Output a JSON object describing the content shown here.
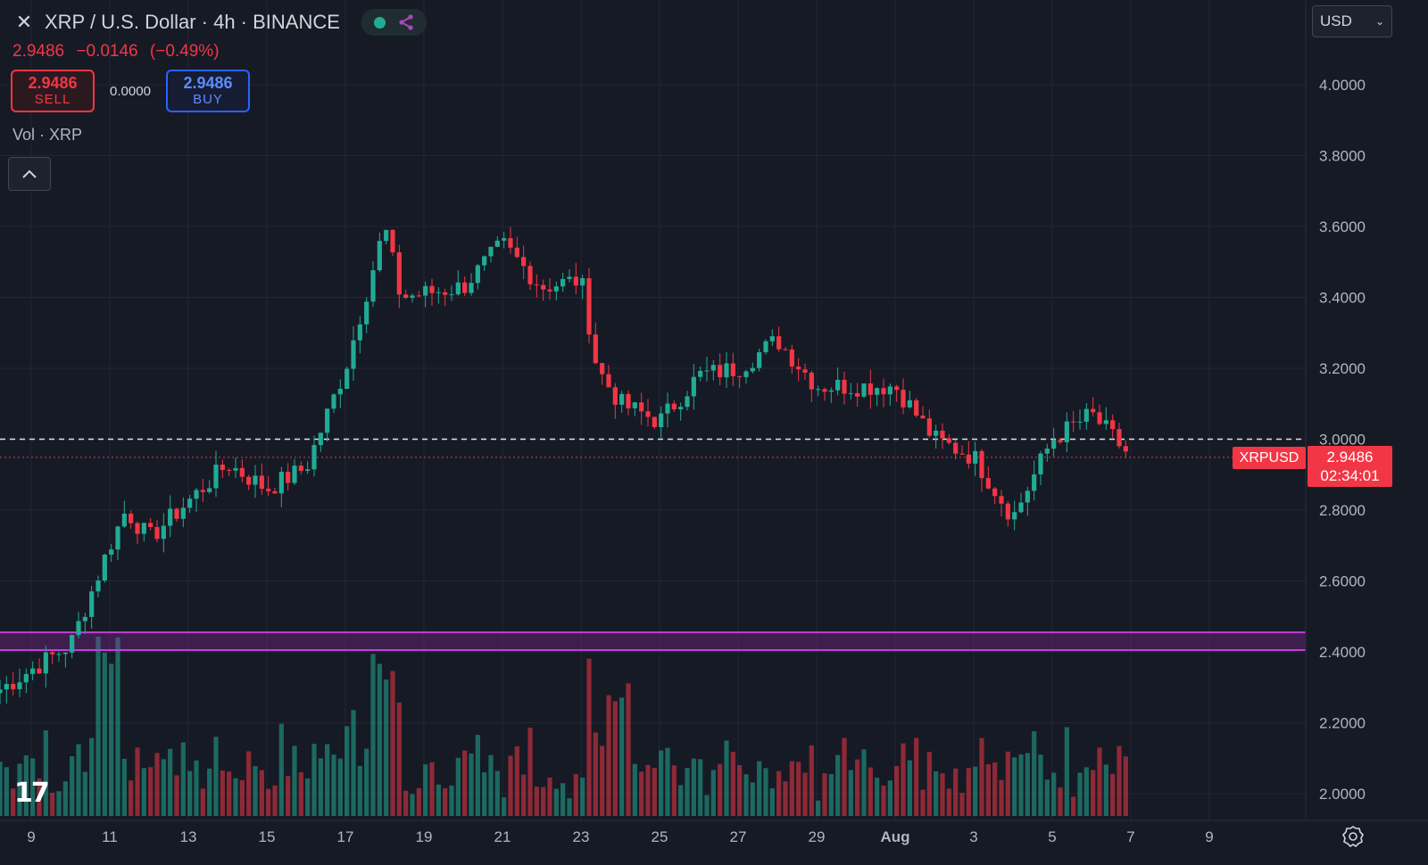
{
  "header": {
    "close_icon": "close-icon",
    "symbol_title": "XRP / U.S. Dollar · 4h · BINANCE",
    "status_icons": [
      "market-open-dot-icon",
      "share-icon"
    ]
  },
  "ohlc": {
    "last": "2.9486",
    "change": "−0.0146",
    "change_pct": "(−0.49%)"
  },
  "trade_panel": {
    "sell_price": "2.9486",
    "sell_label": "SELL",
    "spread": "0.0000",
    "buy_price": "2.9486",
    "buy_label": "BUY"
  },
  "volume_label": "Vol · XRP",
  "currency_selector": {
    "value": "USD"
  },
  "price_marker": {
    "symbol": "XRPUSD",
    "price": "2.9486",
    "countdown": "02:34:01"
  },
  "colors": {
    "up": "#22ab94",
    "down": "#f23645",
    "zone": "#9c27b0",
    "background": "#161a25"
  },
  "chart_data": {
    "type": "candlestick",
    "interval": "4h",
    "y_axis": {
      "ticks": [
        "4.0000",
        "3.8000",
        "3.6000",
        "3.4000",
        "3.2000",
        "3.0000",
        "2.8000",
        "2.6000",
        "2.4000",
        "2.2000",
        "2.0000"
      ],
      "ylim": [
        1.95,
        4.2
      ],
      "side": "right"
    },
    "x_axis": {
      "ticks": [
        "9",
        "11",
        "13",
        "15",
        "17",
        "19",
        "21",
        "23",
        "25",
        "27",
        "29",
        "Aug",
        "3",
        "5",
        "7",
        "9"
      ]
    },
    "key_points": [
      {
        "date": "Jul 8",
        "price": 2.28
      },
      {
        "date": "Jul 10",
        "price": 2.42
      },
      {
        "date": "Jul 11",
        "price": 2.7
      },
      {
        "date": "Jul 11",
        "price": 2.8
      },
      {
        "date": "Jul 12",
        "price": 2.72
      },
      {
        "date": "Jul 14",
        "price": 2.93
      },
      {
        "date": "Jul 15",
        "price": 2.86
      },
      {
        "date": "Jul 16",
        "price": 2.92
      },
      {
        "date": "Jul 17",
        "price": 3.2
      },
      {
        "date": "Jul 18",
        "price": 3.6
      },
      {
        "date": "Jul 18",
        "price": 3.4
      },
      {
        "date": "Jul 20",
        "price": 3.43
      },
      {
        "date": "Jul 21",
        "price": 3.55
      },
      {
        "date": "Jul 22",
        "price": 3.43
      },
      {
        "date": "Jul 23",
        "price": 3.45
      },
      {
        "date": "Jul 23",
        "price": 3.2
      },
      {
        "date": "Jul 24",
        "price": 3.1
      },
      {
        "date": "Jul 25",
        "price": 3.05
      },
      {
        "date": "Jul 26",
        "price": 3.18
      },
      {
        "date": "Jul 27",
        "price": 3.2
      },
      {
        "date": "Jul 28",
        "price": 3.28
      },
      {
        "date": "Jul 29",
        "price": 3.15
      },
      {
        "date": "Jul 31",
        "price": 3.15
      },
      {
        "date": "Aug 1",
        "price": 3.0
      },
      {
        "date": "Aug 2",
        "price": 2.95
      },
      {
        "date": "Aug 3",
        "price": 2.78
      },
      {
        "date": "Aug 4",
        "price": 3.0
      },
      {
        "date": "Aug 5",
        "price": 3.07
      },
      {
        "date": "Aug 6",
        "price": 2.95
      }
    ],
    "lines": [
      {
        "style": "dashed",
        "price": 3.0
      },
      {
        "style": "dotted",
        "price": 2.9486
      }
    ],
    "zone": {
      "from": 2.405,
      "to": 2.455
    },
    "volume_peaks": [
      {
        "date": "Jul 11",
        "relative": 0.98
      },
      {
        "date": "Jul 18",
        "relative": 0.8
      },
      {
        "date": "Jul 24",
        "relative": 0.74
      }
    ]
  }
}
